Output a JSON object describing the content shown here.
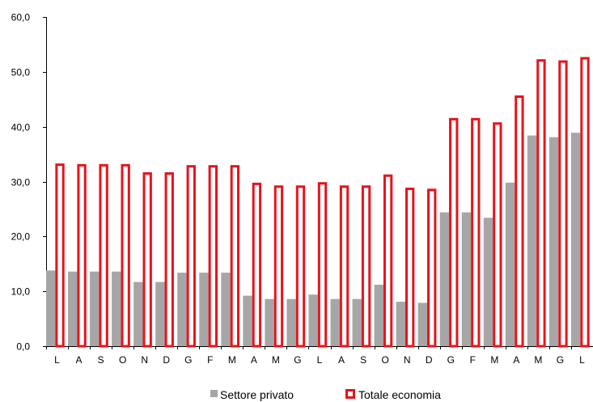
{
  "chart_data": {
    "type": "bar",
    "title": "",
    "xlabel": "",
    "ylabel": "",
    "ylim": [
      0,
      60
    ],
    "ytick_step": 10,
    "ytick_format": "comma-1-decimal",
    "grid": false,
    "legend_position": "bottom",
    "categories": [
      "L",
      "A",
      "S",
      "O",
      "N",
      "D",
      "G",
      "F",
      "M",
      "A",
      "M",
      "G",
      "L",
      "A",
      "S",
      "O",
      "N",
      "D",
      "G",
      "F",
      "M",
      "A",
      "M",
      "G",
      "L"
    ],
    "series": [
      {
        "name": "Settore privato",
        "style": "filled",
        "color": "#a6a6a6",
        "values": [
          13.8,
          13.6,
          13.6,
          13.6,
          11.7,
          11.7,
          13.4,
          13.4,
          13.4,
          9.2,
          8.6,
          8.6,
          9.4,
          8.6,
          8.6,
          11.2,
          8.1,
          7.9,
          24.4,
          24.4,
          23.4,
          29.8,
          38.4,
          38.1,
          38.9
        ]
      },
      {
        "name": "Totale economia",
        "style": "outline",
        "color": "#e8131b",
        "values": [
          33.3,
          33.2,
          33.2,
          33.2,
          31.7,
          31.7,
          33.0,
          33.0,
          33.0,
          29.8,
          29.3,
          29.3,
          29.9,
          29.3,
          29.3,
          31.3,
          28.9,
          28.7,
          41.6,
          41.6,
          40.8,
          45.7,
          52.3,
          52.1,
          52.7
        ]
      }
    ]
  }
}
